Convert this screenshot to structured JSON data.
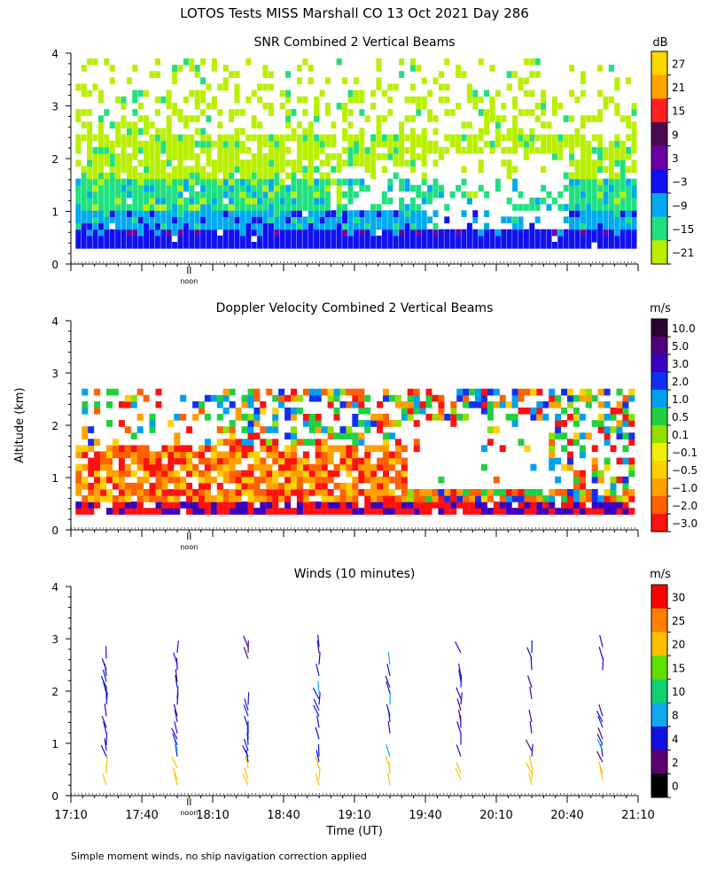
{
  "figure": {
    "title": "LOTOS Tests MISS Marshall CO  13 Oct 2021 Day 286",
    "ylabel": "Altitude (km)",
    "xlabel": "Time (UT)",
    "footnote": "Simple moment winds, no ship navigation correction applied",
    "noon_label": "noon"
  },
  "chart_data": [
    {
      "type": "heatmap",
      "title": "SNR Combined 2 Vertical Beams",
      "ylim": [
        0,
        4
      ],
      "yticks": [
        "0",
        "1",
        "2",
        "3",
        "4"
      ],
      "x_time_range_min": [
        0,
        240
      ],
      "noon_marker_min": 50,
      "colorbar": {
        "unit": "dB",
        "labels": [
          "27",
          "21",
          "15",
          "9",
          "3",
          "−3",
          "−9",
          "−15",
          "−21"
        ],
        "colors": [
          "#ffd700",
          "#ffa500",
          "#ff2020",
          "#4b0a50",
          "#6a00a8",
          "#1010f0",
          "#00aaf0",
          "#20e080",
          "#b8f000"
        ]
      }
    },
    {
      "type": "heatmap",
      "title": "Doppler Velocity Combined 2 Vertical Beams",
      "ylim": [
        0,
        4
      ],
      "yticks": [
        "0",
        "1",
        "2",
        "3",
        "4"
      ],
      "x_time_range_min": [
        0,
        240
      ],
      "noon_marker_min": 50,
      "colorbar": {
        "unit": "m/s",
        "labels": [
          "10.0",
          "5.0",
          "3.0",
          "2.0",
          "1.0",
          "0.5",
          "0.1",
          "−0.1",
          "−0.5",
          "−1.0",
          "−2.0",
          "−3.0"
        ],
        "colors": [
          "#2a0530",
          "#50007a",
          "#3a00c0",
          "#1030f0",
          "#00a0f0",
          "#20d040",
          "#90e000",
          "#f0f000",
          "#ffd000",
          "#ffa000",
          "#ff6000",
          "#ff1010"
        ]
      }
    },
    {
      "type": "scatter",
      "title": "Winds (10 minutes)",
      "ylim": [
        0,
        4
      ],
      "yticks": [
        "0",
        "1",
        "2",
        "3",
        "4"
      ],
      "x_time_range_min": [
        0,
        240
      ],
      "xticks": [
        "17:10",
        "17:40",
        "18:10",
        "18:40",
        "19:10",
        "19:40",
        "20:10",
        "20:40",
        "21:10"
      ],
      "noon_marker_min": 50,
      "colorbar": {
        "unit": "m/s",
        "labels": [
          "30",
          "25",
          "20",
          "15",
          "10",
          "8",
          "4",
          "2",
          "0"
        ],
        "colors": [
          "#ff0000",
          "#ff8000",
          "#ffc000",
          "#60e000",
          "#10d070",
          "#10a8f0",
          "#1010e0",
          "#5a0070",
          "#000000"
        ]
      },
      "wind_profile_times_min": [
        15,
        45,
        75,
        105,
        135,
        165,
        195,
        225
      ]
    }
  ]
}
